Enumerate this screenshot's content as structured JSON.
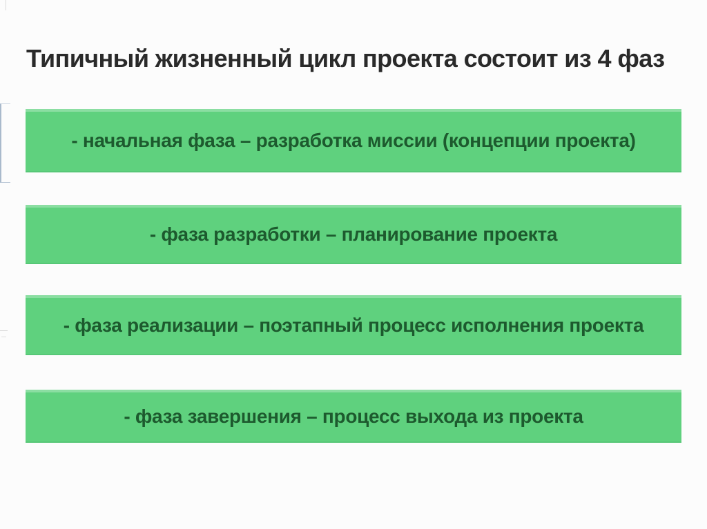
{
  "slide": {
    "title": "Типичный жизненный цикл проекта состоит из 4 фаз",
    "phases": [
      {
        "label": "- начальная фаза – разработка миссии (концепции проекта)"
      },
      {
        "label": "- фаза разработки – планирование проекта"
      },
      {
        "label": "- фаза реализации – поэтапный процесс исполнения проекта"
      },
      {
        "label": "- фаза завершения – процесс выхода из проекта"
      }
    ],
    "colors": {
      "bar_background": "#5fd17e",
      "bar_text": "#1d5a2e",
      "title_text": "#2a2a2a",
      "page_background": "#fcfcfc",
      "edge_artifact": "#a9bacc"
    }
  }
}
